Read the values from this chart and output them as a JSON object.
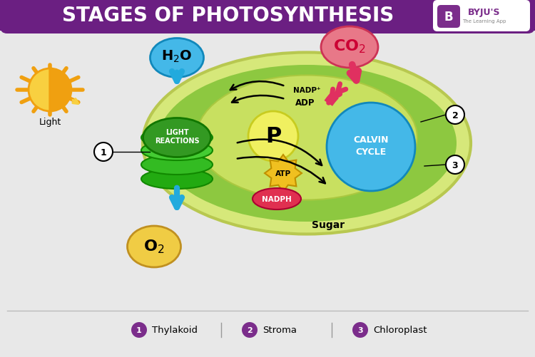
{
  "title": "STAGES OF PHOTOSYNTHESIS",
  "title_bg": "#6b1f82",
  "title_color": "#ffffff",
  "bg_color": "#e8e8e8",
  "byju_color": "#7b2d8b",
  "chloroplast_outer_color": "#d6e87a",
  "chloroplast_outer_edge": "#b8c850",
  "chloroplast_inner_color": "#8dc840",
  "stroma_color": "#c8e060",
  "thylakoid_top_color": "#55ee44",
  "thylakoid_mid_color": "#44cc33",
  "thylakoid_bot_color": "#33aa22",
  "thylakoid_dark": "#229911",
  "lr_bg_color": "#339922",
  "water_bubble_color": "#44b8e8",
  "co2_bubble_color": "#e87888",
  "o2_bubble_color": "#f0cc44",
  "p_bubble_color": "#f0f060",
  "atp_bubble_color": "#f0c020",
  "nadph_bubble_color": "#e03050",
  "calvin_color": "#44b8e8",
  "arrow_red": "#e03060",
  "arrow_blue": "#22aadd",
  "sun_orange": "#f0a010",
  "sun_yellow": "#f8d040",
  "label_bg": "#7b2d8b",
  "legend_labels": [
    "Thylakoid",
    "Stroma",
    "Chloroplast"
  ]
}
